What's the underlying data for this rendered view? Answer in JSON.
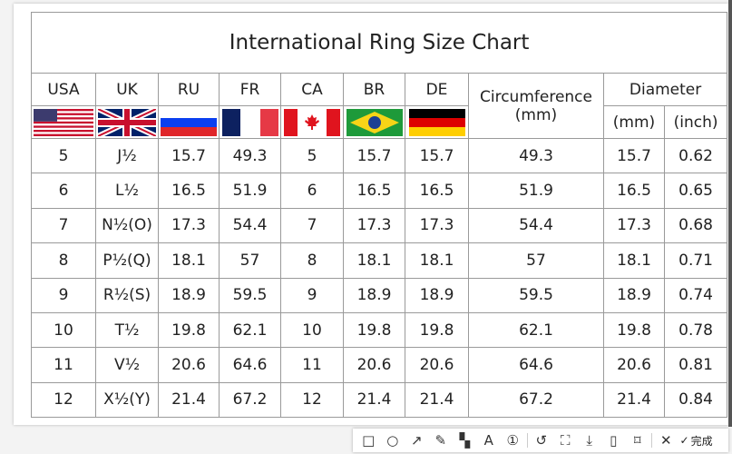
{
  "chart": {
    "title": "International Ring Size Chart",
    "headers": [
      "USA",
      "UK",
      "RU",
      "FR",
      "CA",
      "BR",
      "DE"
    ],
    "circumference_header": "Circumference",
    "circumference_unit": "(mm)",
    "diameter_header": "Diameter",
    "diameter_mm": "(mm)",
    "diameter_inch": "(inch)",
    "flags": [
      "us-flag-icon",
      "uk-flag-icon",
      "russia-flag-icon",
      "france-flag-icon",
      "canada-flag-icon",
      "brazil-flag-icon",
      "germany-flag-icon"
    ],
    "rows": [
      [
        "5",
        "J½",
        "15.7",
        "49.3",
        "5",
        "15.7",
        "15.7",
        "49.3",
        "15.7",
        "0.62"
      ],
      [
        "6",
        "L½",
        "16.5",
        "51.9",
        "6",
        "16.5",
        "16.5",
        "51.9",
        "16.5",
        "0.65"
      ],
      [
        "7",
        "N½(O)",
        "17.3",
        "54.4",
        "7",
        "17.3",
        "17.3",
        "54.4",
        "17.3",
        "0.68"
      ],
      [
        "8",
        "P½(Q)",
        "18.1",
        "57",
        "8",
        "18.1",
        "18.1",
        "57",
        "18.1",
        "0.71"
      ],
      [
        "9",
        "R½(S)",
        "18.9",
        "59.5",
        "9",
        "18.9",
        "18.9",
        "59.5",
        "18.9",
        "0.74"
      ],
      [
        "10",
        "T½",
        "19.8",
        "62.1",
        "10",
        "19.8",
        "19.8",
        "62.1",
        "19.8",
        "0.78"
      ],
      [
        "11",
        "V½",
        "20.6",
        "64.6",
        "11",
        "20.6",
        "20.6",
        "64.6",
        "20.6",
        "0.81"
      ],
      [
        "12",
        "X½(Y)",
        "21.4",
        "67.2",
        "12",
        "21.4",
        "21.4",
        "67.2",
        "21.4",
        "0.84"
      ]
    ]
  },
  "toolbar": {
    "tools": [
      {
        "name": "rectangle-tool",
        "glyph": "□"
      },
      {
        "name": "ellipse-tool",
        "glyph": "○"
      },
      {
        "name": "arrow-tool",
        "glyph": "↗"
      },
      {
        "name": "pencil-tool",
        "glyph": "✎"
      },
      {
        "name": "mosaic-tool",
        "glyph": "▚"
      },
      {
        "name": "text-tool",
        "glyph": "A"
      },
      {
        "name": "number-tool",
        "glyph": "①"
      },
      {
        "name": "undo-tool",
        "glyph": "↺"
      },
      {
        "name": "ocr-tool",
        "glyph": "⛶"
      },
      {
        "name": "download-tool",
        "glyph": "⤓"
      },
      {
        "name": "pin-tool",
        "glyph": "▯"
      },
      {
        "name": "bookmark-tool",
        "glyph": "⌑"
      },
      {
        "name": "close-tool",
        "glyph": "✕"
      }
    ],
    "done_icon": "✓",
    "done_label": "完成"
  }
}
